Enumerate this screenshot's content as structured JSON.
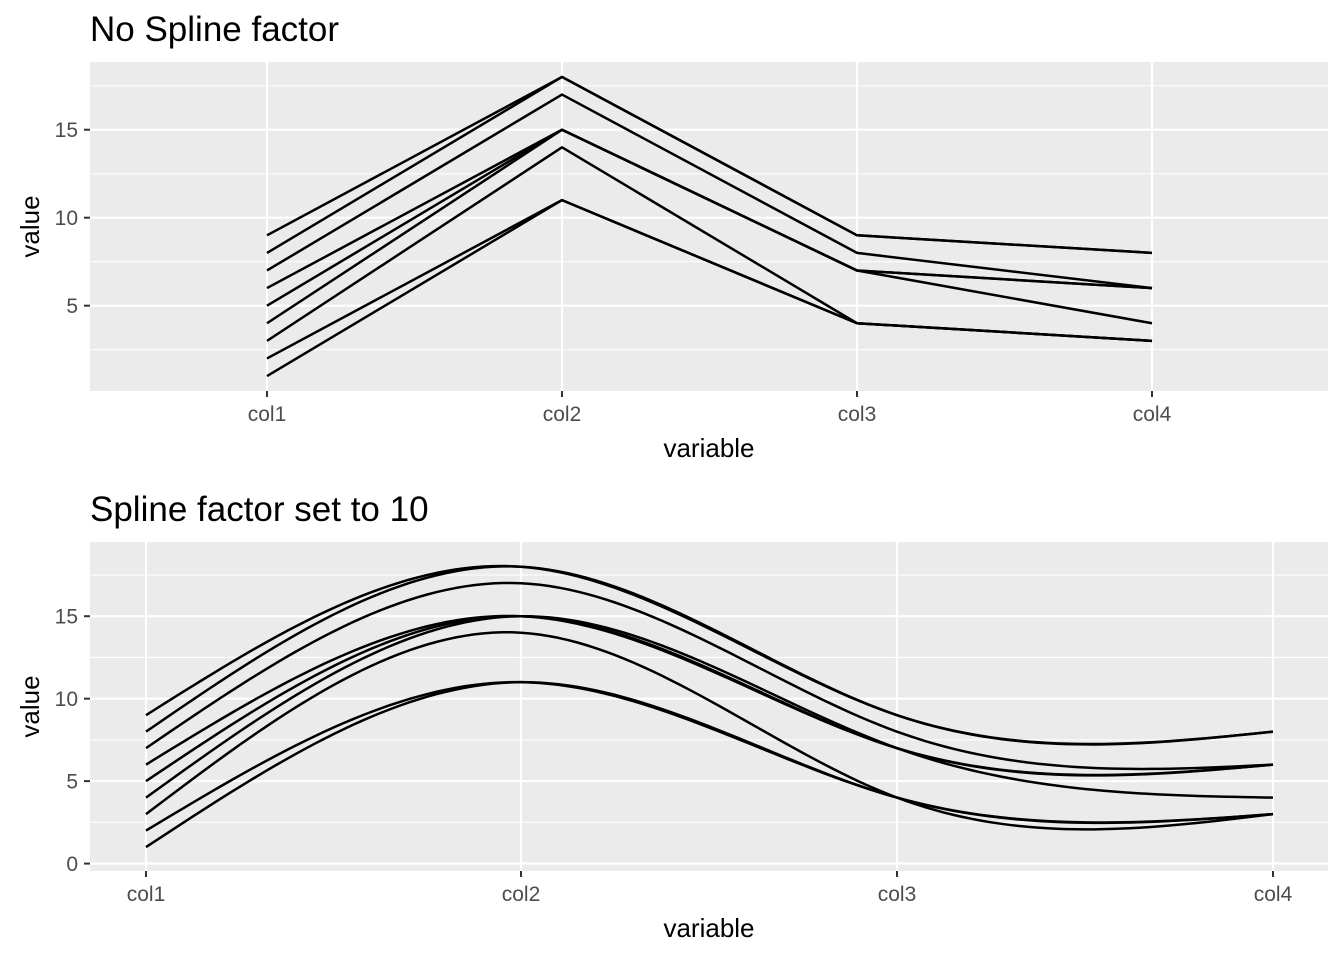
{
  "chart_data": [
    {
      "type": "line",
      "title": "No Spline factor",
      "xlabel": "variable",
      "ylabel": "value",
      "categories": [
        "col1",
        "col2",
        "col3",
        "col4"
      ],
      "ylim": [
        0.15,
        18.85
      ],
      "y_ticks": [
        5,
        10,
        15
      ],
      "y_tick_labels": [
        "5",
        "10",
        "15"
      ],
      "x_tick_labels": [
        "col1",
        "col2",
        "col3",
        "col4"
      ],
      "grid": true,
      "legend": "none",
      "series": [
        {
          "values": [
            1,
            11,
            4,
            3
          ]
        },
        {
          "values": [
            2,
            11,
            4,
            3
          ]
        },
        {
          "values": [
            3,
            14,
            4,
            3
          ]
        },
        {
          "values": [
            4,
            15,
            7,
            4
          ]
        },
        {
          "values": [
            5,
            15,
            7,
            6
          ]
        },
        {
          "values": [
            6,
            15,
            7,
            6
          ]
        },
        {
          "values": [
            7,
            17,
            8,
            6
          ]
        },
        {
          "values": [
            8,
            18,
            9,
            8
          ]
        },
        {
          "values": [
            9,
            18,
            9,
            8
          ]
        }
      ]
    },
    {
      "type": "line",
      "title": "Spline factor set to 10",
      "xlabel": "variable",
      "ylabel": "value",
      "categories": [
        "col1",
        "col2",
        "col3",
        "col4"
      ],
      "ylim": [
        -0.45,
        19.5
      ],
      "y_ticks": [
        0,
        5,
        10,
        15
      ],
      "y_tick_labels": [
        "0",
        "5",
        "10",
        "15"
      ],
      "x_tick_labels": [
        "col1",
        "col2",
        "col3",
        "col4"
      ],
      "grid": true,
      "legend": "none",
      "smoothing": "spline",
      "series": [
        {
          "values": [
            1,
            11,
            4,
            3
          ]
        },
        {
          "values": [
            2,
            11,
            4,
            3
          ]
        },
        {
          "values": [
            3,
            14,
            4,
            3
          ]
        },
        {
          "values": [
            4,
            15,
            7,
            4
          ]
        },
        {
          "values": [
            5,
            15,
            7,
            6
          ]
        },
        {
          "values": [
            6,
            15,
            7,
            6
          ]
        },
        {
          "values": [
            7,
            17,
            8,
            6
          ]
        },
        {
          "values": [
            8,
            18,
            9,
            8
          ]
        },
        {
          "values": [
            9,
            18,
            9,
            8
          ]
        }
      ]
    }
  ]
}
